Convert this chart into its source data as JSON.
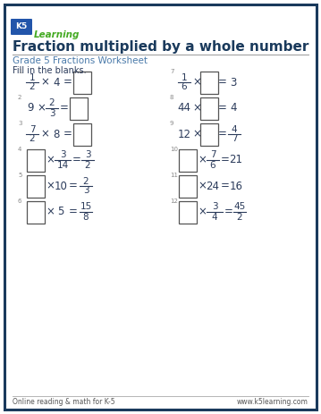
{
  "title": "Fraction multiplied by a whole number",
  "subtitle": "Grade 5 Fractions Worksheet",
  "instruction": "Fill in the blanks.",
  "border_color": "#1a3a5c",
  "title_color": "#1a3a5c",
  "subtitle_color": "#4a7aaa",
  "text_color": "#2a3a5a",
  "footer_left": "Online reading & math for K-5",
  "footer_right": "www.k5learning.com",
  "bg_color": "#ffffff",
  "problems": [
    {
      "num": "1",
      "expr": "frac_whole_eq_box",
      "frac_n": "1",
      "frac_d": "2",
      "whole": "4",
      "side": "left",
      "row": 0
    },
    {
      "num": "2",
      "expr": "whole_frac_eq_box",
      "whole": "9",
      "frac_n": "2",
      "frac_d": "3",
      "side": "left",
      "row": 1
    },
    {
      "num": "3",
      "expr": "frac_whole_eq_box",
      "frac_n": "7",
      "frac_d": "2",
      "whole": "8",
      "side": "left",
      "row": 2
    },
    {
      "num": "4",
      "expr": "box_frac_eq_frac",
      "frac_n": "3",
      "frac_d": "14",
      "res_n": "3",
      "res_d": "2",
      "side": "left",
      "row": 3
    },
    {
      "num": "5",
      "expr": "box_whole_eq_frac",
      "whole": "10",
      "res_n": "2",
      "res_d": "3",
      "side": "left",
      "row": 4
    },
    {
      "num": "6",
      "expr": "box_whole_eq_frac",
      "whole": "5",
      "res_n": "15",
      "res_d": "8",
      "side": "left",
      "row": 5
    },
    {
      "num": "7",
      "expr": "frac_box_eq_whole",
      "frac_n": "1",
      "frac_d": "6",
      "result": "3",
      "side": "right",
      "row": 0
    },
    {
      "num": "8",
      "expr": "whole_box_eq_whole",
      "whole": "44",
      "result": "4",
      "side": "right",
      "row": 1
    },
    {
      "num": "9",
      "expr": "whole_box_eq_frac",
      "whole": "12",
      "res_n": "4",
      "res_d": "7",
      "side": "right",
      "row": 2
    },
    {
      "num": "10",
      "expr": "box_frac_eq_whole",
      "frac_n": "7",
      "frac_d": "6",
      "result": "21",
      "side": "right",
      "row": 3
    },
    {
      "num": "11",
      "expr": "box_whole_eq_whole",
      "whole": "24",
      "result": "16",
      "side": "right",
      "row": 4
    },
    {
      "num": "12",
      "expr": "box_frac_eq_frac",
      "frac_n": "3",
      "frac_d": "4",
      "res_n": "45",
      "res_d": "2",
      "side": "right",
      "row": 5
    }
  ]
}
